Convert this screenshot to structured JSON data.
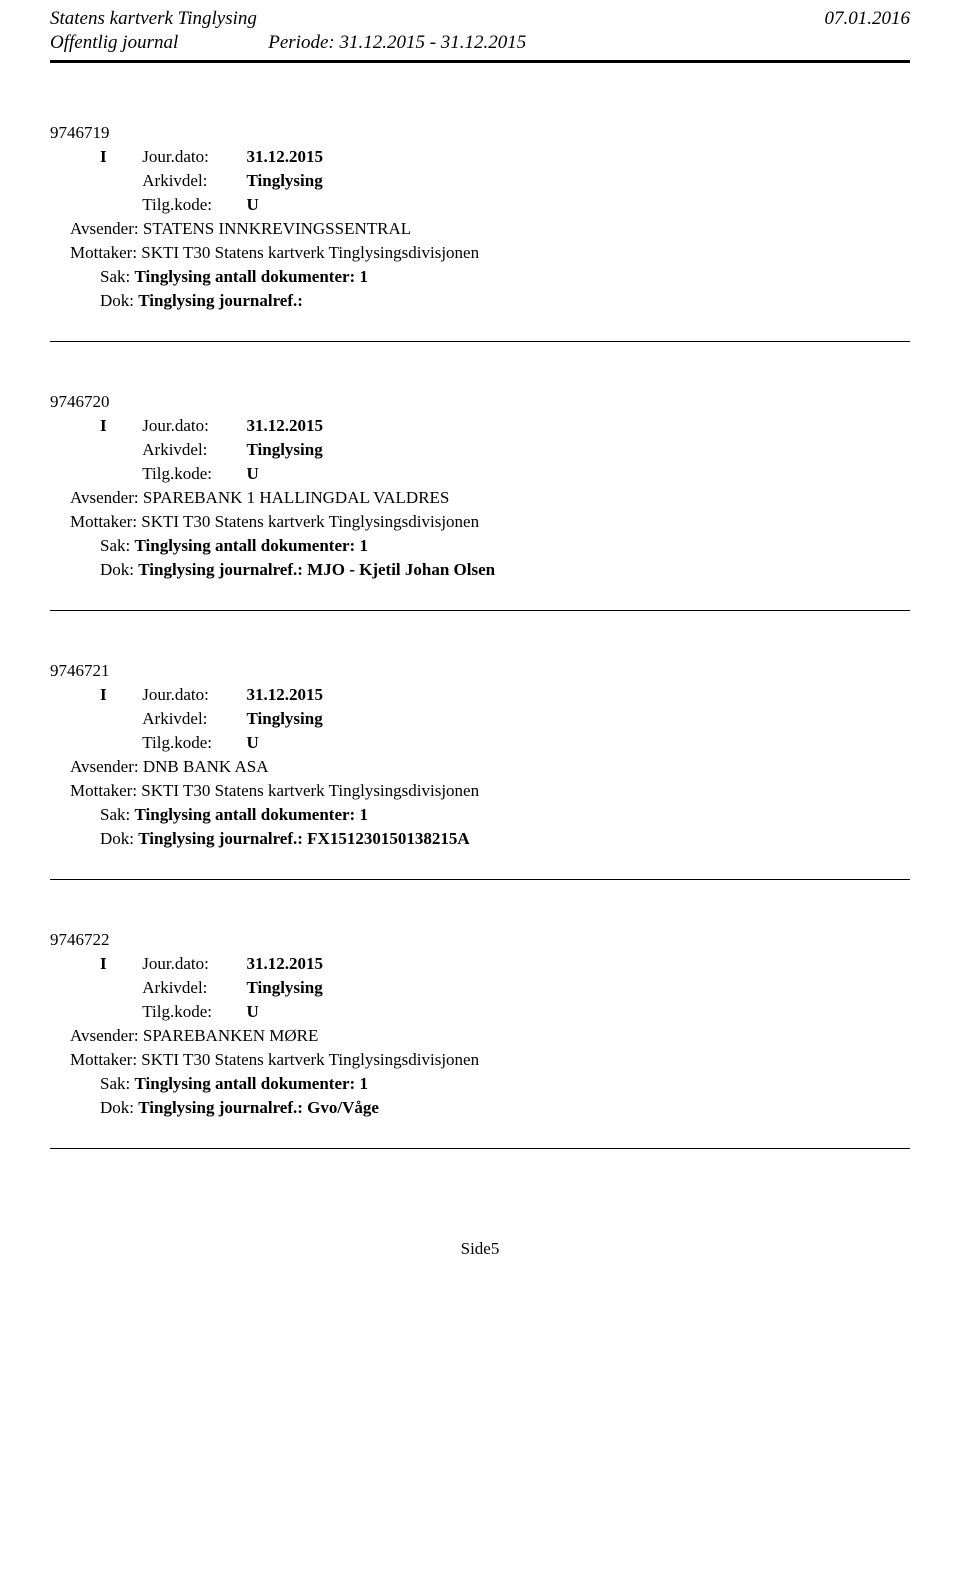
{
  "header": {
    "title": "Statens kartverk Tinglysing",
    "date": "07.01.2016",
    "subtitle": "Offentlig journal",
    "period": "Periode: 31.12.2015 - 31.12.2015"
  },
  "labels": {
    "jour_dato": "Jour.dato:",
    "arkivdel": "Arkivdel:",
    "tilg_kode": "Tilg.kode:",
    "avsender": "Avsender:",
    "mottaker": "Mottaker:",
    "sak": "Sak:",
    "dok": "Dok:"
  },
  "entries": [
    {
      "id": "9746719",
      "type": "I",
      "jour_dato": "31.12.2015",
      "arkivdel": "Tinglysing",
      "tilg_kode": "U",
      "avsender": "STATENS INNKREVINGSSENTRAL",
      "mottaker": "SKTI T30 Statens kartverk Tinglysingsdivisjonen",
      "sak": "Tinglysing  antall dokumenter: 1",
      "dok": "Tinglysing journalref.:"
    },
    {
      "id": "9746720",
      "type": "I",
      "jour_dato": "31.12.2015",
      "arkivdel": "Tinglysing",
      "tilg_kode": "U",
      "avsender": "SPAREBANK 1 HALLINGDAL VALDRES",
      "mottaker": "SKTI T30 Statens kartverk Tinglysingsdivisjonen",
      "sak": "Tinglysing  antall dokumenter: 1",
      "dok": "Tinglysing journalref.: MJO - Kjetil Johan Olsen"
    },
    {
      "id": "9746721",
      "type": "I",
      "jour_dato": "31.12.2015",
      "arkivdel": "Tinglysing",
      "tilg_kode": "U",
      "avsender": "DNB BANK ASA",
      "mottaker": "SKTI T30 Statens kartverk Tinglysingsdivisjonen",
      "sak": "Tinglysing  antall dokumenter: 1",
      "dok": "Tinglysing journalref.: FX151230150138215A"
    },
    {
      "id": "9746722",
      "type": "I",
      "jour_dato": "31.12.2015",
      "arkivdel": "Tinglysing",
      "tilg_kode": "U",
      "avsender": "SPAREBANKEN MØRE",
      "mottaker": "SKTI T30 Statens kartverk Tinglysingsdivisjonen",
      "sak": "Tinglysing  antall dokumenter: 1",
      "dok": "Tinglysing journalref.: Gvo/Våge"
    }
  ],
  "footer": {
    "page_number": "Side5"
  }
}
